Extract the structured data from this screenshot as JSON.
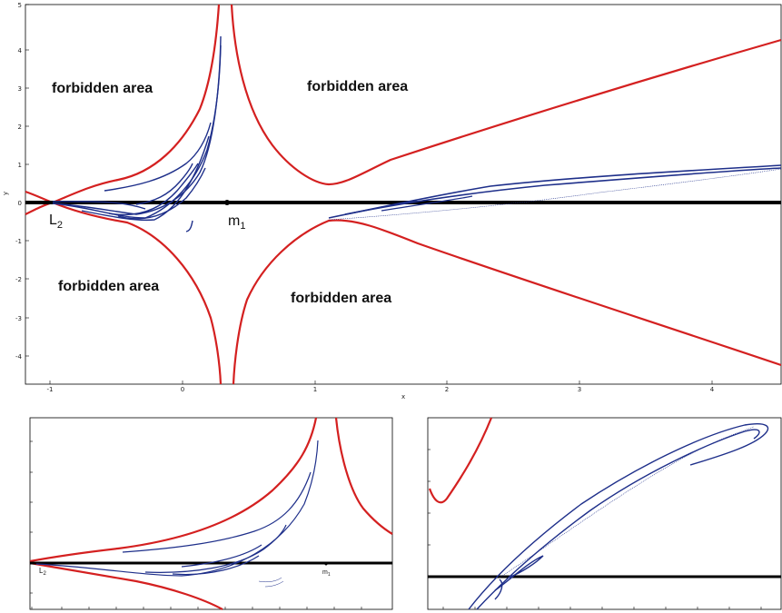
{
  "main": {
    "xlabel": "x",
    "ylabel": "y",
    "x_ticks": [
      "-1",
      "0",
      "1",
      "2",
      "3",
      "4"
    ],
    "y_ticks": [
      "5",
      "4",
      "3",
      "2",
      "1",
      "0",
      "-1",
      "-2",
      "-3",
      "-4"
    ],
    "regions": [
      {
        "label": "forbidden area"
      },
      {
        "label": "forbidden area"
      },
      {
        "label": "forbidden area"
      },
      {
        "label": "forbidden area"
      }
    ],
    "points": {
      "L2": {
        "main": "L",
        "sub": "2"
      },
      "m1": {
        "main": "m",
        "sub": "1"
      }
    }
  },
  "inset_left": {
    "points": {
      "L2": {
        "main": "L",
        "sub": "2"
      },
      "m1": {
        "main": "m",
        "sub": "1"
      }
    }
  },
  "inset_right": {},
  "colors": {
    "zero_velocity_curve": "#d42020",
    "trajectory": "#1e2f8a",
    "axis_line": "#000000"
  }
}
